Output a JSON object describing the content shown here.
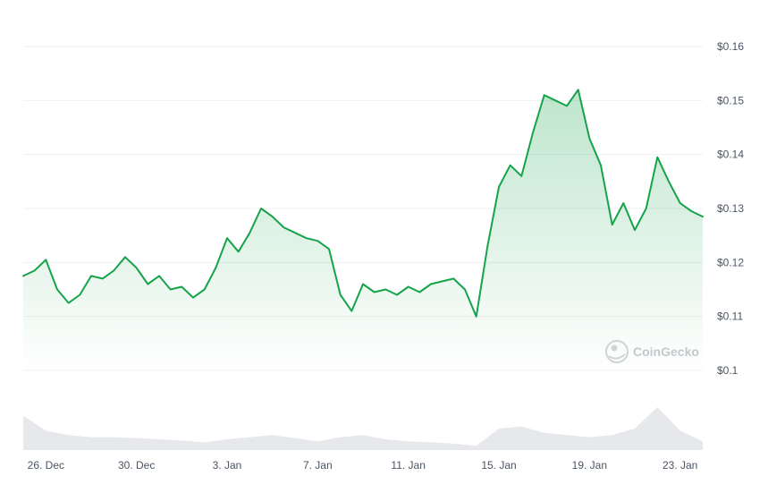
{
  "colors": {
    "line": "#16a34a",
    "area_top": "#16a34a",
    "volume": "#e6e8eb",
    "watermark": "#c4c7cc"
  },
  "watermark": {
    "text": "CoinGecko",
    "icon": "coingecko-logo-icon"
  },
  "chart_data": {
    "type": "line",
    "y_unit": "USD",
    "ylim": [
      0.1,
      0.16
    ],
    "y_ticks": [
      0.1,
      0.11,
      0.12,
      0.13,
      0.14,
      0.15,
      0.16
    ],
    "y_tick_labels": [
      "$0.1",
      "$0.11",
      "$0.12",
      "$0.13",
      "$0.14",
      "$0.15",
      "$0.16"
    ],
    "x_range": [
      "2023-12-25",
      "2024-01-24"
    ],
    "x_ticks": [
      "2023-12-26",
      "2023-12-30",
      "2024-01-03",
      "2024-01-07",
      "2024-01-11",
      "2024-01-15",
      "2024-01-19",
      "2024-01-23"
    ],
    "x_tick_labels": [
      "26. Dec",
      "30. Dec",
      "3. Jan",
      "7. Jan",
      "11. Jan",
      "15. Jan",
      "19. Jan",
      "23. Jan"
    ],
    "grid": true,
    "legend": "none",
    "series": [
      {
        "x": [
          "2023-12-25T00:00",
          "2023-12-25T12:00",
          "2023-12-26T00:00",
          "2023-12-26T12:00",
          "2023-12-27T00:00",
          "2023-12-27T12:00",
          "2023-12-28T00:00",
          "2023-12-28T12:00",
          "2023-12-29T00:00",
          "2023-12-29T12:00",
          "2023-12-30T00:00",
          "2023-12-30T12:00",
          "2023-12-31T00:00",
          "2023-12-31T12:00",
          "2024-01-01T00:00",
          "2024-01-01T12:00",
          "2024-01-02T00:00",
          "2024-01-02T12:00",
          "2024-01-03T00:00",
          "2024-01-03T12:00",
          "2024-01-04T00:00",
          "2024-01-04T12:00",
          "2024-01-05T00:00",
          "2024-01-05T12:00",
          "2024-01-06T00:00",
          "2024-01-06T12:00",
          "2024-01-07T00:00",
          "2024-01-07T12:00",
          "2024-01-08T00:00",
          "2024-01-08T12:00",
          "2024-01-09T00:00",
          "2024-01-09T12:00",
          "2024-01-10T00:00",
          "2024-01-10T12:00",
          "2024-01-11T00:00",
          "2024-01-11T12:00",
          "2024-01-12T00:00",
          "2024-01-12T12:00",
          "2024-01-13T00:00",
          "2024-01-13T12:00",
          "2024-01-14T00:00",
          "2024-01-14T12:00",
          "2024-01-15T00:00",
          "2024-01-15T12:00",
          "2024-01-16T00:00",
          "2024-01-16T12:00",
          "2024-01-17T00:00",
          "2024-01-17T12:00",
          "2024-01-18T00:00",
          "2024-01-18T12:00",
          "2024-01-19T00:00",
          "2024-01-19T12:00",
          "2024-01-20T00:00",
          "2024-01-20T12:00",
          "2024-01-21T00:00",
          "2024-01-21T12:00",
          "2024-01-22T00:00",
          "2024-01-22T12:00",
          "2024-01-23T00:00",
          "2024-01-23T12:00",
          "2024-01-24T00:00"
        ],
        "values": [
          0.1175,
          0.1185,
          0.1205,
          0.115,
          0.1125,
          0.114,
          0.1175,
          0.117,
          0.1185,
          0.121,
          0.119,
          0.116,
          0.1175,
          0.115,
          0.1155,
          0.1135,
          0.115,
          0.119,
          0.1245,
          0.122,
          0.1255,
          0.13,
          0.1285,
          0.1265,
          0.1255,
          0.1245,
          0.124,
          0.1225,
          0.114,
          0.111,
          0.116,
          0.1145,
          0.115,
          0.114,
          0.1155,
          0.1145,
          0.116,
          0.1165,
          0.117,
          0.115,
          0.11,
          0.123,
          0.134,
          0.138,
          0.136,
          0.144,
          0.151,
          0.15,
          0.149,
          0.152,
          0.143,
          0.138,
          0.127,
          0.131,
          0.126,
          0.13,
          0.1395,
          0.135,
          0.131,
          0.1295,
          0.1285
        ]
      }
    ],
    "volume": {
      "x": [
        "2023-12-25",
        "2023-12-26",
        "2023-12-27",
        "2023-12-28",
        "2023-12-29",
        "2023-12-30",
        "2023-12-31",
        "2024-01-01",
        "2024-01-02",
        "2024-01-03",
        "2024-01-04",
        "2024-01-05",
        "2024-01-06",
        "2024-01-07",
        "2024-01-08",
        "2024-01-09",
        "2024-01-10",
        "2024-01-11",
        "2024-01-12",
        "2024-01-13",
        "2024-01-14",
        "2024-01-15",
        "2024-01-16",
        "2024-01-17",
        "2024-01-18",
        "2024-01-19",
        "2024-01-20",
        "2024-01-21",
        "2024-01-22",
        "2024-01-23",
        "2024-01-24"
      ],
      "values": [
        0.8,
        0.45,
        0.35,
        0.3,
        0.3,
        0.28,
        0.25,
        0.22,
        0.18,
        0.25,
        0.3,
        0.35,
        0.28,
        0.2,
        0.3,
        0.35,
        0.25,
        0.2,
        0.18,
        0.15,
        0.1,
        0.5,
        0.55,
        0.4,
        0.35,
        0.3,
        0.35,
        0.5,
        1.0,
        0.45,
        0.2
      ]
    }
  }
}
